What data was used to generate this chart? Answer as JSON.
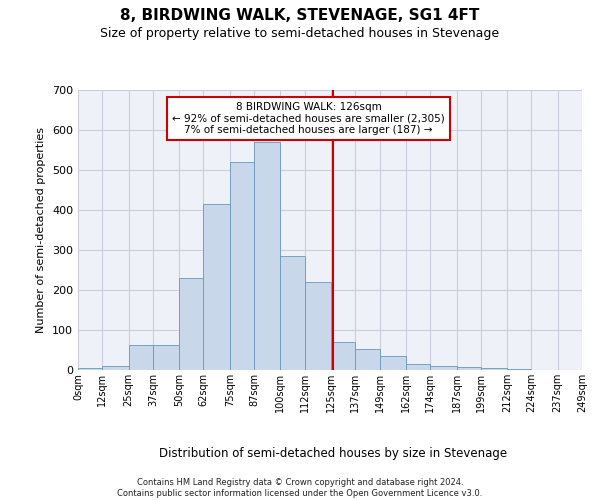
{
  "title": "8, BIRDWING WALK, STEVENAGE, SG1 4FT",
  "subtitle": "Size of property relative to semi-detached houses in Stevenage",
  "xlabel": "Distribution of semi-detached houses by size in Stevenage",
  "ylabel": "Number of semi-detached properties",
  "footer_line1": "Contains HM Land Registry data © Crown copyright and database right 2024.",
  "footer_line2": "Contains public sector information licensed under the Open Government Licence v3.0.",
  "annotation_title": "8 BIRDWING WALK: 126sqm",
  "annotation_line2": "← 92% of semi-detached houses are smaller (2,305)",
  "annotation_line3": "7% of semi-detached houses are larger (187) →",
  "property_size": 126,
  "tick_positions": [
    0,
    12,
    25,
    37,
    50,
    62,
    75,
    87,
    100,
    112,
    125,
    137,
    149,
    162,
    174,
    187,
    199,
    212,
    224,
    237,
    249
  ],
  "tick_labels": [
    "0sqm",
    "12sqm",
    "25sqm",
    "37sqm",
    "50sqm",
    "62sqm",
    "75sqm",
    "87sqm",
    "100sqm",
    "112sqm",
    "125sqm",
    "137sqm",
    "149sqm",
    "162sqm",
    "174sqm",
    "187sqm",
    "199sqm",
    "212sqm",
    "224sqm",
    "237sqm",
    "249sqm"
  ],
  "bar_heights": [
    5,
    10,
    63,
    63,
    230,
    415,
    520,
    570,
    285,
    220,
    70,
    52,
    35,
    15,
    11,
    8,
    5,
    3,
    1,
    0
  ],
  "bar_color": "#c8d8ea",
  "bar_edge_color": "#6699bb",
  "vline_color": "#cc0000",
  "grid_color": "#ccccdd",
  "bg_color": "#eef2f8",
  "ylim_max": 700,
  "yticks": [
    0,
    100,
    200,
    300,
    400,
    500,
    600,
    700
  ],
  "title_fontsize": 11,
  "subtitle_fontsize": 9,
  "ylabel_fontsize": 8,
  "xlabel_fontsize": 8.5,
  "tick_fontsize": 7,
  "annotation_fontsize": 7.5,
  "footer_fontsize": 6
}
